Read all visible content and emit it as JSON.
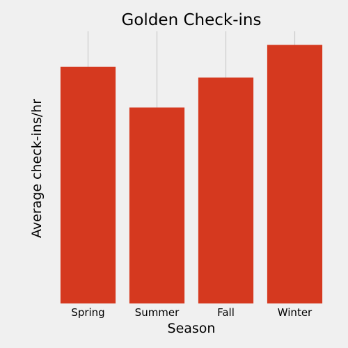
{
  "chart_data": {
    "type": "bar",
    "title": "Golden Check-ins",
    "xlabel": "Season",
    "ylabel": "Average check-ins/hr",
    "categories": [
      "Spring",
      "Summer",
      "Fall",
      "Winter"
    ],
    "values": [
      4.35,
      3.6,
      4.15,
      4.75
    ],
    "ylim": [
      0,
      5
    ],
    "ytick_labels_visible": false,
    "grid": "vertical-only",
    "legend": "none",
    "colors": {
      "bar": "#d5391f",
      "background": "#f0f0f0",
      "grid": "#cbcbcb"
    }
  }
}
